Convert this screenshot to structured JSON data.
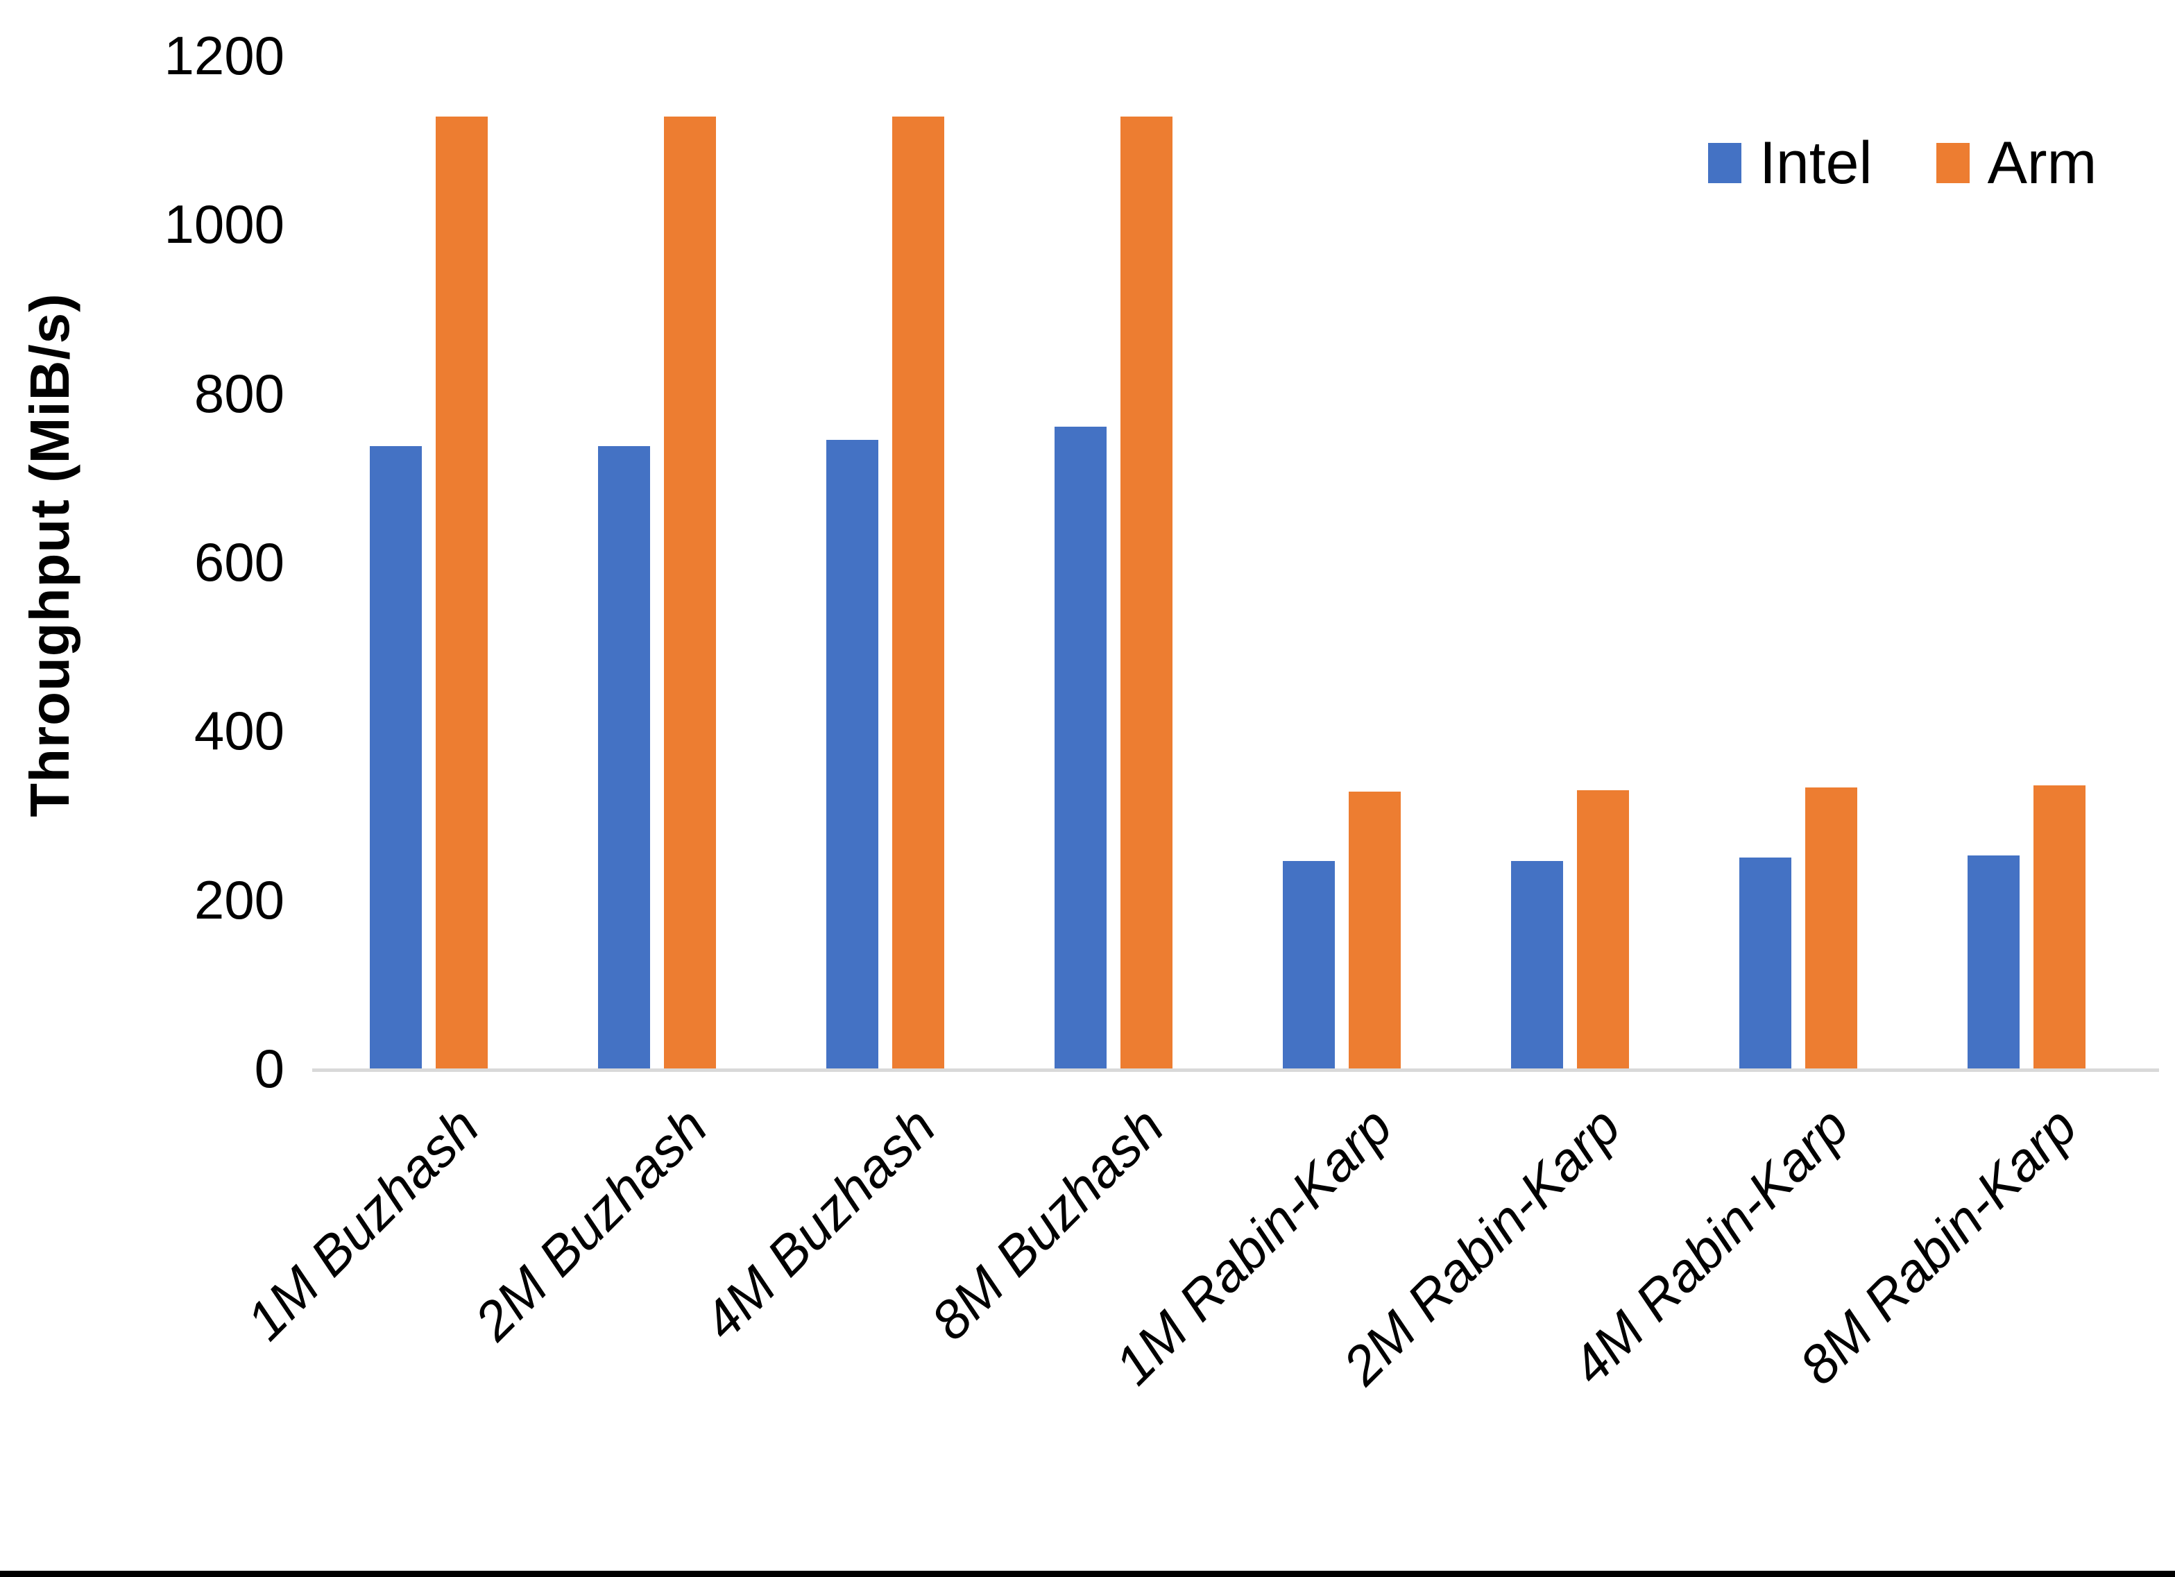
{
  "chart_data": {
    "type": "bar",
    "title": "",
    "xlabel": "",
    "ylabel": "Throughput (MiB/s)",
    "categories": [
      "1M Buzhash",
      "2M Buzhash",
      "4M Buzhash",
      "8M Buzhash",
      "1M Rabin-Karp",
      "2M Rabin-Karp",
      "4M Rabin-Karp",
      "8M Rabin-Karp"
    ],
    "series": [
      {
        "name": "Intel",
        "color": "#4472C4",
        "values": [
          737,
          737,
          745,
          760,
          246,
          246,
          250,
          252
        ]
      },
      {
        "name": "Arm",
        "color": "#ED7D31",
        "values": [
          1128,
          1128,
          1128,
          1128,
          328,
          330,
          333,
          335
        ]
      }
    ],
    "ylim": [
      0,
      1200
    ],
    "ytick_step": 200,
    "ytick_labels": [
      "0",
      "200",
      "400",
      "600",
      "800",
      "1000",
      "1200"
    ],
    "grid": "off",
    "legend_position": "top-right",
    "colors": {
      "axis_line": "#D9D9D9",
      "text": "#000000",
      "background": "#FFFFFF",
      "bottom_border": "#000000"
    }
  }
}
